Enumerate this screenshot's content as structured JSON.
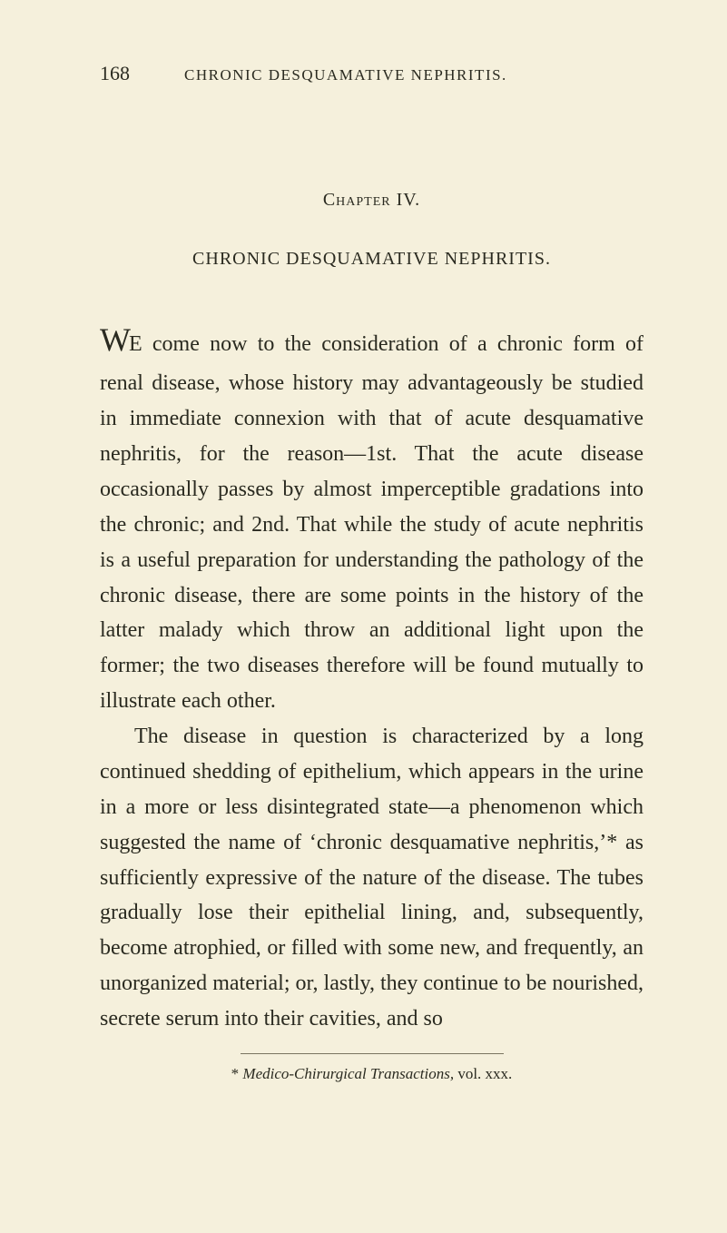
{
  "page": {
    "number": "168",
    "running_title": "CHRONIC DESQUAMATIVE NEPHRITIS.",
    "background_color": "#f5f0dc",
    "text_color": "#2a2a20"
  },
  "chapter": {
    "heading": "Chapter IV.",
    "title": "CHRONIC DESQUAMATIVE NEPHRITIS."
  },
  "body": {
    "dropcap": "W",
    "para1_first": "E come now to the consideration of a chronic form of renal disease, whose history may advantageously be studied in immediate connexion with that of acute desquamative nephritis, for the reason—1st. That the acute disease occasionally passes by almost imperceptible gradations into the chronic; and 2nd. That while the study of acute nephritis is a useful preparation for understanding the pathology of the chronic disease, there are some points in the history of the latter malady which throw an additional light upon the former; the two diseases therefore will be found mutually to illustrate each other.",
    "para2": "The disease in question is characterized by a long continued shedding of epithelium, which appears in the urine in a more or less disintegrated state—a phenomenon which suggested the name of ‘chronic desquamative nephritis,’* as sufficiently expressive of the nature of the disease. The tubes gradually lose their epithelial lining, and, subsequently, become atrophied, or filled with some new, and frequently, an unorganized material; or, lastly, they continue to be nourished, secrete serum into their cavities, and so"
  },
  "footnote": {
    "marker": "*",
    "text_italic": "Medico-Chirurgical Transactions,",
    "text_rest": " vol. xxx."
  },
  "typography": {
    "body_fontsize": 24,
    "body_lineheight": 1.62,
    "header_fontsize": 22,
    "running_title_fontsize": 17,
    "chapter_fontsize": 20,
    "footnote_fontsize": 17,
    "dropcap_fontsize": 36
  }
}
